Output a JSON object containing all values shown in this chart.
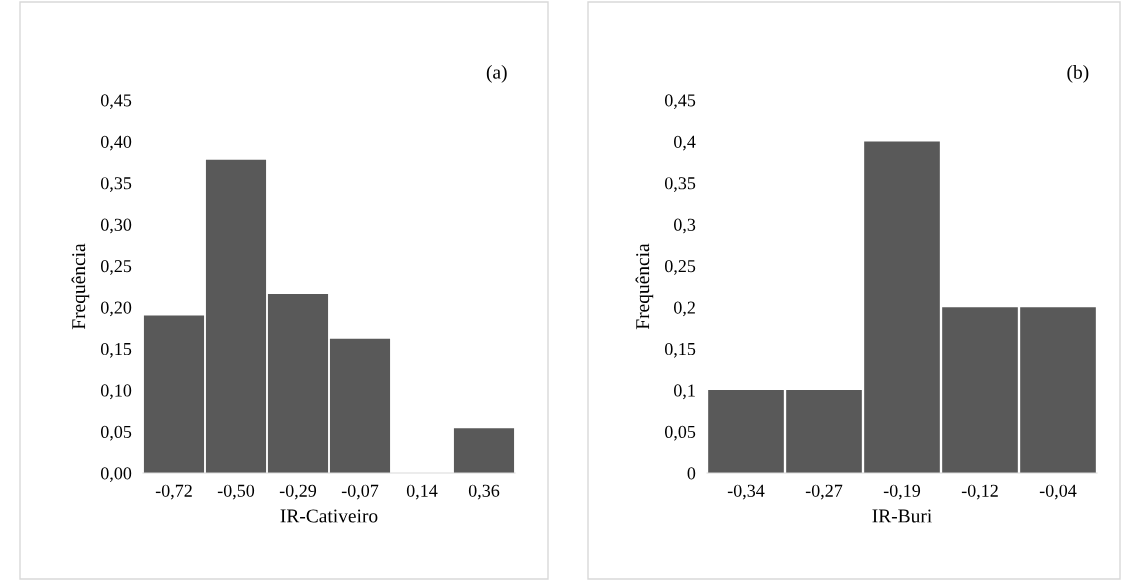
{
  "chart_data": [
    {
      "type": "bar",
      "categories": [
        "-0,72",
        "-0,50",
        "-0,29",
        "-0,07",
        "0,14",
        "0,36"
      ],
      "values": [
        0.19,
        0.378,
        0.216,
        0.162,
        0,
        0.054
      ],
      "color": "#595959",
      "ylim": [
        0,
        0.45
      ],
      "yticks": [
        {
          "value": 0,
          "label": "0,00"
        },
        {
          "value": 0.05,
          "label": "0,05"
        },
        {
          "value": 0.1,
          "label": "0,10"
        },
        {
          "value": 0.15,
          "label": "0,15"
        },
        {
          "value": 0.2,
          "label": "0,20"
        },
        {
          "value": 0.25,
          "label": "0,25"
        },
        {
          "value": 0.3,
          "label": "0,30"
        },
        {
          "value": 0.35,
          "label": "0,35"
        },
        {
          "value": 0.4,
          "label": "0,40"
        },
        {
          "value": 0.45,
          "label": "0,45"
        }
      ],
      "xlabel": "IR-Cativeiro",
      "ylabel": "Frequência",
      "annotations": [
        "(a)"
      ],
      "grid": false,
      "legend": false
    },
    {
      "type": "bar",
      "categories": [
        "-0,34",
        "-0,27",
        "-0,19",
        "-0,12",
        "-0,04"
      ],
      "values": [
        0.1,
        0.1,
        0.4,
        0.2,
        0.2
      ],
      "color": "#595959",
      "ylim": [
        0,
        0.45
      ],
      "yticks": [
        0,
        {
          "value": 0.05,
          "label": "0,05"
        },
        {
          "value": 0.1,
          "label": "0,1"
        },
        {
          "value": 0.15,
          "label": "0,15"
        },
        {
          "value": 0.2,
          "label": "0,2"
        },
        {
          "value": 0.25,
          "label": "0,25"
        },
        {
          "value": 0.3,
          "label": "0,3"
        },
        {
          "value": 0.35,
          "label": "0,35"
        },
        {
          "value": 0.4,
          "label": "0,4"
        },
        {
          "value": 0.45,
          "label": "0,45"
        }
      ],
      "xlabel": "IR-Buri",
      "ylabel": "Frequência",
      "annotations": [
        "(b)"
      ],
      "grid": false,
      "legend": false
    }
  ]
}
